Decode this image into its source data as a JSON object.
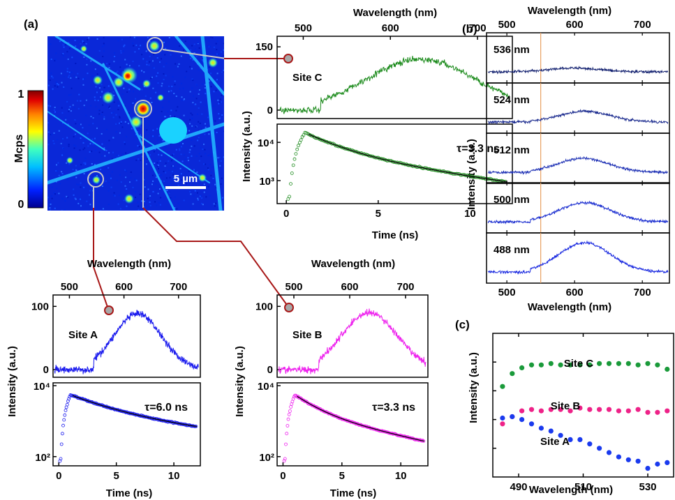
{
  "panels": {
    "a": "(a)",
    "b": "(b)",
    "c": "(c)"
  },
  "map": {
    "colorbar_label": "Mcps",
    "colorbar_ticks": [
      "1",
      "0"
    ],
    "scalebar_label": "5 µm",
    "colormap": [
      "#00008f",
      "#0050ff",
      "#00c8ff",
      "#7fff7f",
      "#ffff00",
      "#ff8000",
      "#c00000",
      "#800000"
    ]
  },
  "axis_text": {
    "wavelength": "Wavelength (nm)",
    "intensity": "Intensity (a.u.)",
    "time": "Time (ns)"
  },
  "chart_data": [
    {
      "id": "siteC-spectrum",
      "type": "line",
      "label": "Site C",
      "color": "#1a8a1a",
      "x_top_ticks": [
        "500",
        "600",
        "700"
      ],
      "y_ticks": [
        "150",
        "0"
      ],
      "xlim": [
        470,
        740
      ],
      "ylim": [
        -20,
        175
      ],
      "peak_nm": 635,
      "peak_value": 120,
      "onset_nm": 520
    },
    {
      "id": "siteC-decay",
      "type": "scatter",
      "label": "τ=3.3 ns",
      "color": "#1a8a1a",
      "x_ticks": [
        "0",
        "5",
        "10"
      ],
      "y_ticks": [
        "10⁴",
        "10³"
      ],
      "xlim": [
        -0.5,
        12.3
      ],
      "ylim_log": [
        250,
        30000
      ],
      "tau_ns": 3.3,
      "peak": 18000
    },
    {
      "id": "siteA-spectrum",
      "type": "line",
      "label": "Site A",
      "color": "#1a1aee",
      "x_top_ticks": [
        "500",
        "600",
        "700"
      ],
      "y_ticks": [
        "100",
        "0"
      ],
      "xlim": [
        470,
        740
      ],
      "ylim": [
        -12,
        118
      ],
      "peak_nm": 625,
      "peak_value": 88,
      "onset_nm": 545
    },
    {
      "id": "siteA-decay",
      "type": "scatter",
      "label": "τ=6.0 ns",
      "color": "#1a1aee",
      "x_ticks": [
        "0",
        "5",
        "10"
      ],
      "y_ticks": [
        "10⁴",
        "10²"
      ],
      "xlim": [
        -0.5,
        12.3
      ],
      "ylim_log": [
        55,
        12000
      ],
      "tau_ns": 6.0,
      "peak": 5500
    },
    {
      "id": "siteB-spectrum",
      "type": "line",
      "label": "Site B",
      "color": "#ee22ee",
      "x_top_ticks": [
        "500",
        "600",
        "700"
      ],
      "y_ticks": [
        "100",
        "0"
      ],
      "xlim": [
        470,
        740
      ],
      "ylim": [
        -12,
        118
      ],
      "peak_nm": 635,
      "peak_value": 90,
      "onset_nm": 545
    },
    {
      "id": "siteB-decay",
      "type": "scatter",
      "label": "τ=3.3 ns",
      "color": "#ee22ee",
      "x_ticks": [
        "0",
        "5",
        "10"
      ],
      "y_ticks": [
        "10⁴",
        "10²"
      ],
      "xlim": [
        -0.5,
        12.3
      ],
      "ylim_log": [
        55,
        12000
      ],
      "tau_ns": 3.3,
      "peak": 5500
    },
    {
      "id": "excitation-spectra",
      "type": "line",
      "x_top_ticks": [
        "500",
        "600",
        "700"
      ],
      "x_ticks": [
        "500",
        "600",
        "700"
      ],
      "xlim": [
        470,
        740
      ],
      "marker_nm": 550,
      "series": [
        {
          "name": "536 nm",
          "peak_nm": 600,
          "amplitude": 0.12,
          "color": "#101e6e"
        },
        {
          "name": "524 nm",
          "peak_nm": 615,
          "amplitude": 0.35,
          "color": "#1a2a8e"
        },
        {
          "name": "512 nm",
          "peak_nm": 612,
          "amplitude": 0.45,
          "color": "#1c2fb4"
        },
        {
          "name": "500 nm",
          "peak_nm": 615,
          "amplitude": 0.62,
          "color": "#1c2fd0"
        },
        {
          "name": "488 nm",
          "peak_nm": 615,
          "amplitude": 0.95,
          "color": "#1a2ae0"
        }
      ]
    },
    {
      "id": "excitation-dependence",
      "type": "scatter",
      "x_ticks": [
        "490",
        "510",
        "530"
      ],
      "xlim": [
        482,
        538
      ],
      "ylim": [
        0,
        1
      ],
      "x": [
        485,
        488,
        491,
        494,
        497,
        500,
        503,
        506,
        509,
        512,
        515,
        518,
        521,
        524,
        527,
        530,
        533,
        536
      ],
      "series": [
        {
          "name": "Site C",
          "color": "#1a9a3a",
          "values": [
            0.63,
            0.72,
            0.76,
            0.78,
            0.78,
            0.79,
            0.78,
            0.78,
            0.78,
            0.78,
            0.79,
            0.79,
            0.79,
            0.79,
            0.78,
            0.79,
            0.78,
            0.75
          ]
        },
        {
          "name": "Site B",
          "color": "#ee2288",
          "values": [
            0.37,
            0.42,
            0.46,
            0.47,
            0.46,
            0.47,
            0.47,
            0.46,
            0.48,
            0.47,
            0.47,
            0.47,
            0.46,
            0.46,
            0.47,
            0.45,
            0.45,
            0.46
          ]
        },
        {
          "name": "Site A",
          "color": "#1a3aee",
          "values": [
            0.41,
            0.42,
            0.4,
            0.37,
            0.34,
            0.32,
            0.29,
            0.26,
            0.26,
            0.23,
            0.2,
            0.17,
            0.14,
            0.12,
            0.11,
            0.06,
            0.09,
            0.1
          ]
        }
      ]
    }
  ]
}
